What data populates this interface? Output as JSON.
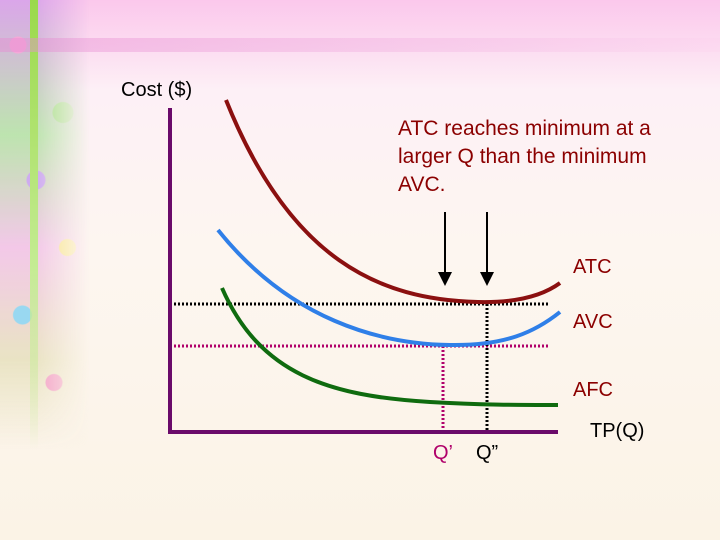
{
  "axes": {
    "y_label": "Cost ($)",
    "x_label": "TP(Q)"
  },
  "annotation": "ATC reaches minimum at a larger Q than the minimum AVC.",
  "curves": {
    "atc": {
      "label": "ATC",
      "color": "#8b1010"
    },
    "avc": {
      "label": "AVC",
      "color": "#2f7fe8"
    },
    "afc": {
      "label": "AFC",
      "color": "#0f6b0f"
    }
  },
  "quantities": {
    "q_prime": "Q’",
    "q_double_prime": "Q”"
  },
  "colors": {
    "axis": "#6a0a6a",
    "guide_atc": "#000000",
    "guide_avc": "#b0006a",
    "arrow": "#000000"
  }
}
